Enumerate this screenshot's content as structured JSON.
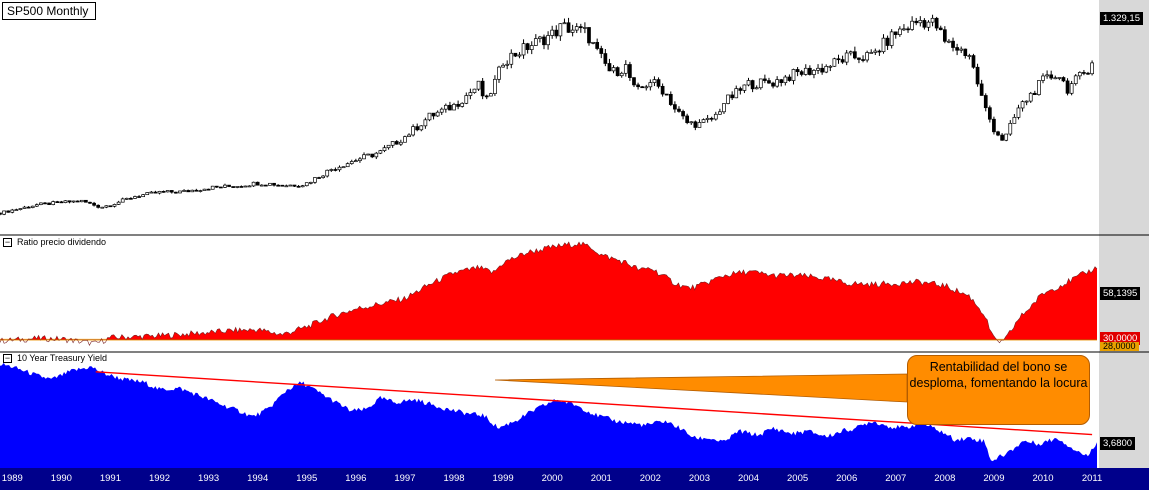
{
  "chart_data": [
    {
      "type": "candlestick",
      "title": "SP500 Monthly",
      "last_value_label": "1.329,15",
      "x_tick_labels": [
        "1989",
        "1990",
        "1991",
        "1992",
        "1993",
        "1994",
        "1995",
        "1996",
        "1997",
        "1998",
        "1999",
        "2000",
        "2001",
        "2002",
        "2003",
        "2004",
        "2005",
        "2006",
        "2007",
        "2008",
        "2009",
        "2010",
        "2011"
      ],
      "x": [
        1988.75,
        1989.0,
        1989.5,
        1990.0,
        1990.4,
        1990.65,
        1990.8,
        1991.0,
        1991.5,
        1992.0,
        1992.5,
        1993.0,
        1993.5,
        1994.0,
        1994.3,
        1994.5,
        1994.9,
        1995.0,
        1995.5,
        1996.0,
        1996.5,
        1997.0,
        1997.5,
        1998.0,
        1998.5,
        1998.65,
        1998.9,
        1999.0,
        1999.5,
        2000.0,
        2000.2,
        2000.7,
        2000.9,
        2001.2,
        2001.5,
        2001.7,
        2002.0,
        2002.3,
        2002.5,
        2002.75,
        2003.0,
        2003.3,
        2003.5,
        2004.0,
        2004.5,
        2005.0,
        2005.5,
        2006.0,
        2006.5,
        2007.0,
        2007.5,
        2007.8,
        2008.0,
        2008.5,
        2008.8,
        2009.0,
        2009.2,
        2009.5,
        2010.0,
        2010.3,
        2010.5,
        2010.9,
        2011.1
      ],
      "close": [
        277,
        295,
        330,
        345,
        355,
        330,
        315,
        330,
        385,
        410,
        415,
        440,
        450,
        470,
        465,
        455,
        460,
        470,
        560,
        620,
        670,
        770,
        900,
        970,
        1100,
        990,
        1170,
        1260,
        1350,
        1430,
        1480,
        1440,
        1320,
        1180,
        1220,
        1050,
        1130,
        1060,
        950,
        860,
        850,
        890,
        990,
        1110,
        1120,
        1180,
        1210,
        1280,
        1290,
        1440,
        1520,
        1500,
        1380,
        1300,
        970,
        820,
        740,
        950,
        1130,
        1180,
        1080,
        1200,
        1329
      ],
      "ylim": [
        180,
        1600
      ]
    },
    {
      "type": "area",
      "title": "Ratio precio dividendo",
      "last_value_label": "58,1395",
      "reference_labels": [
        "30,0000",
        "28,0000"
      ],
      "reference_values": [
        30,
        28
      ],
      "color": "#ff0000",
      "x": [
        1988.75,
        1989.5,
        1990.0,
        1990.7,
        1991.0,
        1992.0,
        1993.0,
        1993.5,
        1994.0,
        1994.5,
        1995.0,
        1995.5,
        1996.0,
        1996.5,
        1997.0,
        1997.5,
        1998.0,
        1998.5,
        1998.8,
        1999.0,
        1999.5,
        2000.0,
        2000.5,
        2000.8,
        2001.0,
        2001.5,
        2001.8,
        2002.0,
        2002.5,
        2002.8,
        2003.0,
        2003.5,
        2004.0,
        2004.5,
        2005.0,
        2005.5,
        2006.0,
        2006.5,
        2007.0,
        2007.5,
        2008.0,
        2008.5,
        2008.8,
        2009.0,
        2009.2,
        2009.5,
        2010.0,
        2010.5,
        2011.1
      ],
      "values": [
        29.5,
        30.5,
        30.3,
        28.5,
        30.8,
        31.5,
        32.8,
        33.6,
        33.9,
        32.0,
        35.0,
        39.0,
        42.0,
        44.0,
        46.0,
        51.5,
        56.0,
        58.0,
        56.0,
        60.0,
        64.0,
        66.0,
        67.5,
        66.0,
        63.0,
        60.0,
        57.0,
        58.0,
        52.0,
        50.0,
        51.0,
        55.0,
        56.5,
        55.0,
        55.0,
        54.0,
        52.0,
        51.5,
        52.0,
        52.5,
        51.0,
        47.0,
        40.0,
        30.0,
        29.0,
        38.0,
        48.0,
        52.5,
        58.1395
      ],
      "ylim": [
        26,
        70
      ]
    },
    {
      "type": "area",
      "title": "10 Year Treasury Yield",
      "last_value_label": "3,6800",
      "color": "#0000ff",
      "trendline_color": "#ff0000",
      "trendline": {
        "x": [
          1990.7,
          2011.0
        ],
        "y": [
          8.55,
          4.15
        ]
      },
      "annotation": "Rentabilidad del bono se desploma, fomentando la locura",
      "annotation_fill": "#ff8c00",
      "x": [
        1988.75,
        1989.0,
        1989.5,
        1989.8,
        1990.2,
        1990.6,
        1990.9,
        1991.3,
        1991.7,
        1992.0,
        1992.4,
        1992.8,
        1993.3,
        1993.7,
        1993.9,
        1994.2,
        1994.6,
        1994.9,
        1995.2,
        1995.6,
        1995.9,
        1996.2,
        1996.5,
        1996.8,
        1997.2,
        1997.6,
        1997.9,
        1998.3,
        1998.6,
        1998.9,
        1999.3,
        1999.6,
        1999.9,
        2000.1,
        2000.5,
        2000.9,
        2001.3,
        2001.7,
        2001.9,
        2002.3,
        2002.6,
        2002.9,
        2003.2,
        2003.5,
        2003.8,
        2004.2,
        2004.5,
        2004.9,
        2005.2,
        2005.6,
        2005.9,
        2006.2,
        2006.5,
        2006.9,
        2007.2,
        2007.5,
        2007.9,
        2008.2,
        2008.5,
        2008.8,
        2008.95,
        2009.3,
        2009.6,
        2009.9,
        2010.3,
        2010.6,
        2010.9,
        2011.1
      ],
      "values": [
        9.1,
        8.9,
        8.3,
        8.0,
        8.6,
        8.9,
        8.4,
        8.0,
        7.8,
        7.3,
        7.4,
        6.9,
        6.2,
        5.7,
        5.4,
        5.9,
        7.3,
        7.8,
        7.2,
        6.4,
        5.8,
        5.9,
        6.7,
        6.4,
        6.6,
        6.2,
        5.9,
        5.6,
        5.5,
        4.6,
        5.2,
        5.8,
        6.3,
        6.6,
        6.2,
        5.5,
        5.1,
        4.9,
        4.8,
        5.1,
        4.6,
        3.9,
        3.9,
        3.6,
        4.4,
        4.1,
        4.6,
        4.2,
        4.4,
        4.0,
        4.4,
        4.6,
        5.1,
        4.7,
        4.6,
        5.0,
        4.4,
        3.8,
        3.9,
        3.7,
        2.3,
        2.9,
        3.7,
        3.5,
        3.9,
        3.2,
        2.6,
        3.68
      ],
      "ylim": [
        1.8,
        9.8
      ]
    }
  ]
}
